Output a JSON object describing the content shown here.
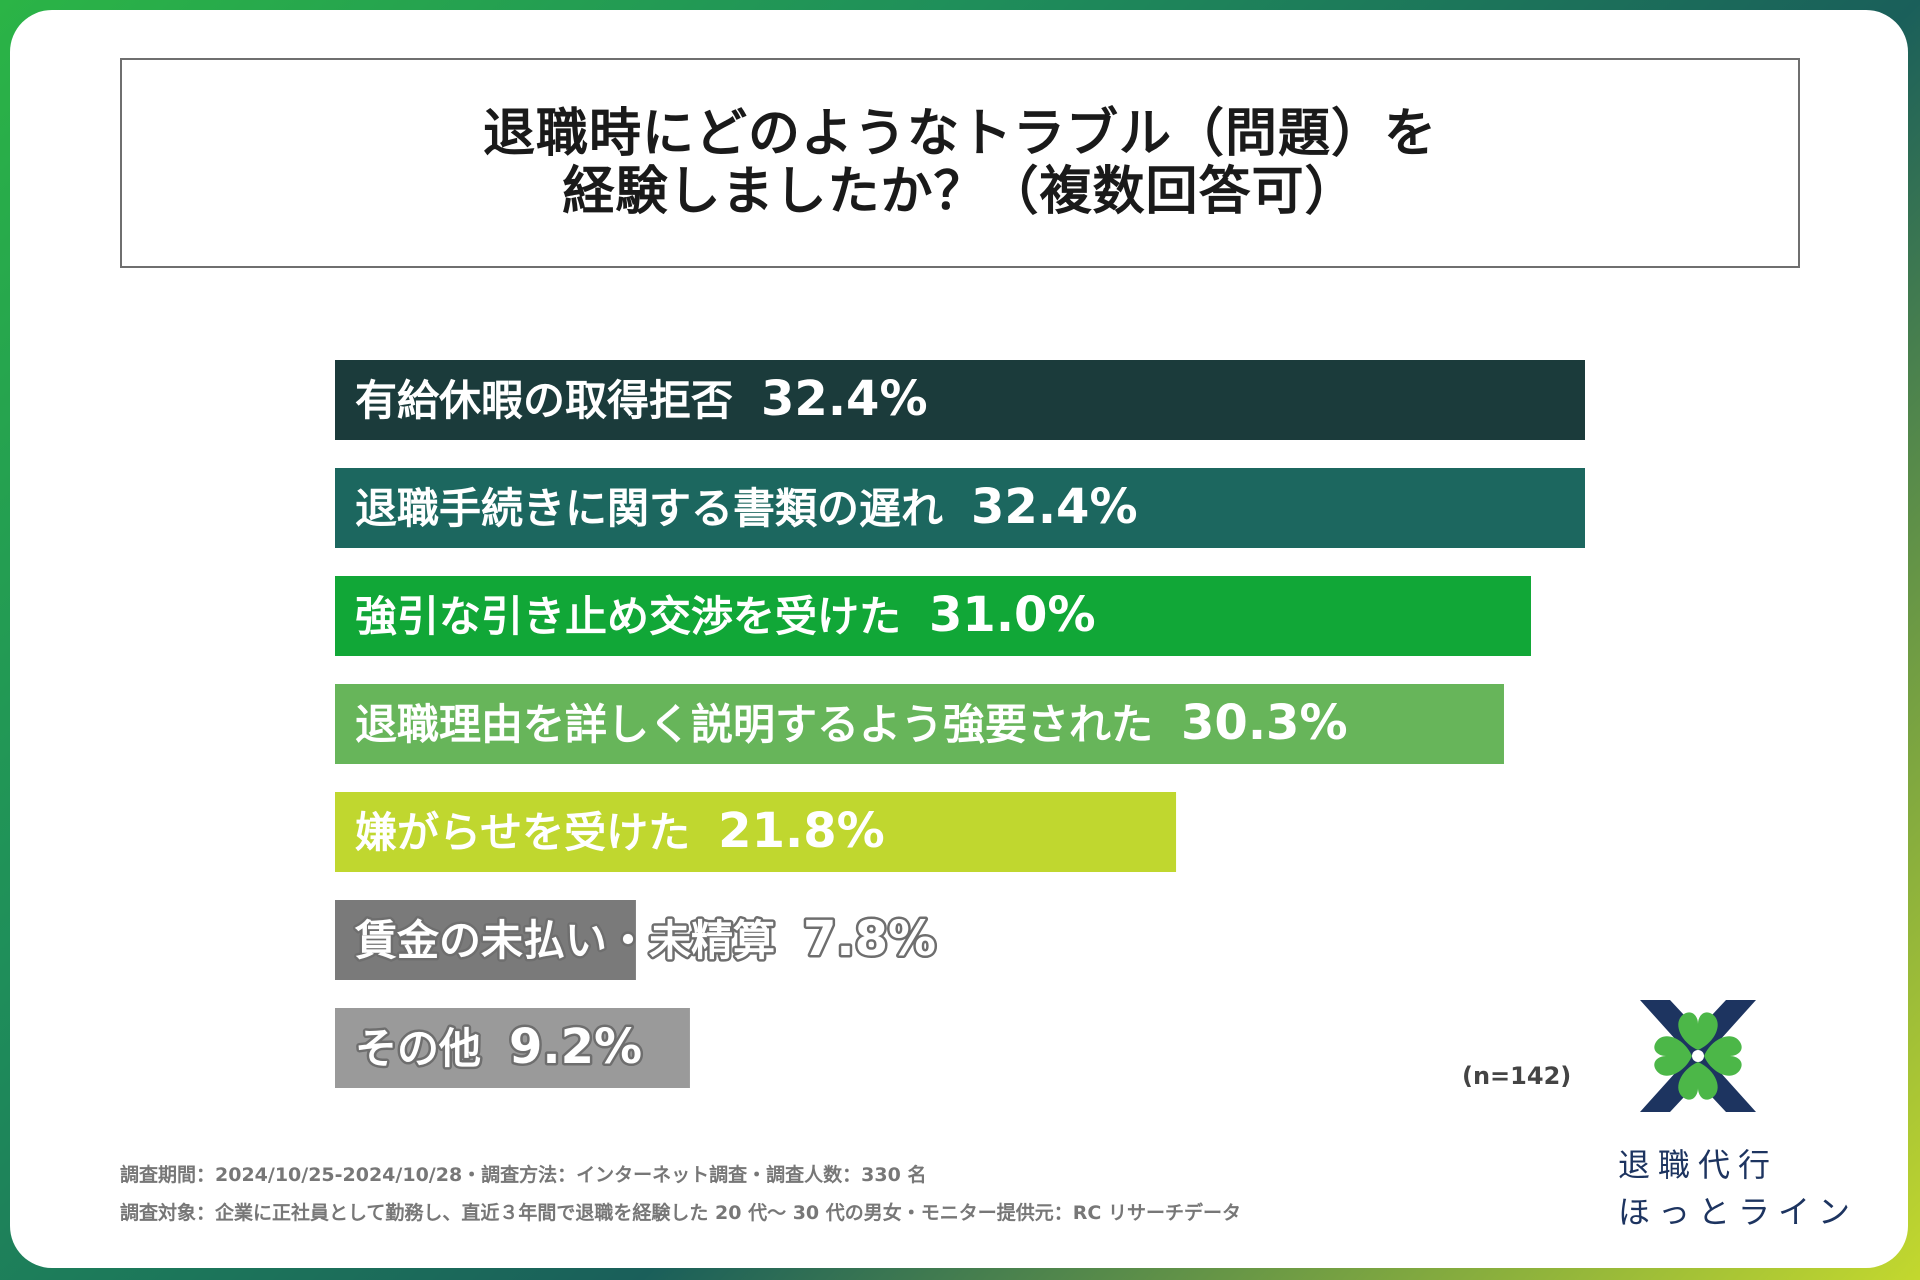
{
  "title": {
    "line1": "退職時にどのようなトラブル（問題）を",
    "line2": "経験しましたか？（複数回答可）"
  },
  "chart_data": {
    "type": "bar",
    "orientation": "horizontal",
    "title": "退職時にどのようなトラブル（問題）を経験しましたか？（複数回答可）",
    "categories": [
      "有給休暇の取得拒否",
      "退職手続きに関する書類の遅れ",
      "強引な引き止め交渉を受けた",
      "退職理由を詳しく説明するよう強要された",
      "嫌がらせを受けた",
      "賃金の未払い・未精算",
      "その他"
    ],
    "values": [
      32.4,
      32.4,
      31.0,
      30.3,
      21.8,
      7.8,
      9.2
    ],
    "value_labels": [
      "32.4%",
      "32.4%",
      "31.0%",
      "30.3%",
      "21.8%",
      "7.8%",
      "9.2%"
    ],
    "colors": [
      "#1b3b3b",
      "#1c675f",
      "#11a737",
      "#67b55a",
      "#c0d72f",
      "#7a7a7a",
      "#9a9a9a"
    ],
    "xlim": [
      0,
      32.4
    ],
    "unit": "%"
  },
  "note": "(n=142)",
  "footer": {
    "line1": "調査期間：2024/10/25-2024/10/28・調査方法：インターネット調査・調査人数：330 名",
    "line2": "調査対象：企業に正社員として勤務し、直近３年間で退職を経験した 20 代〜 30 代の男女・モニター提供元：RC リサーチデータ"
  },
  "logo": {
    "line1": "退職代行",
    "line2": "ほっとライン"
  }
}
